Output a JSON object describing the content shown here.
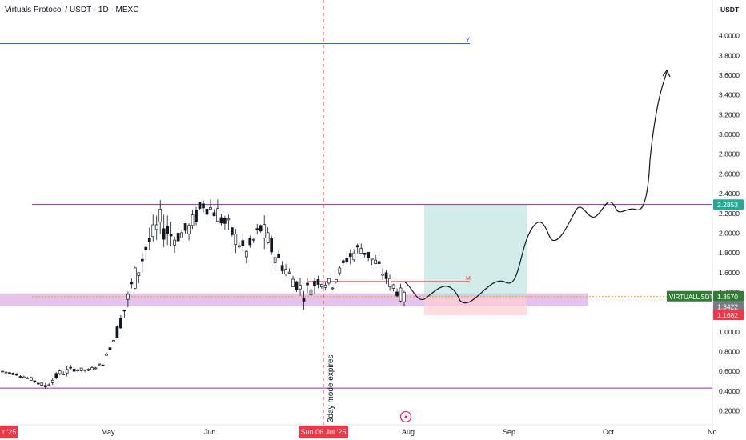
{
  "header": {
    "symbol_title": "Virtuals Protocol / USDT · 1D · MEXC",
    "currency_label": "USDT"
  },
  "chart_data": {
    "type": "candlestick",
    "title": "Virtuals Protocol / USDT · 1D · MEXC",
    "y_axis": {
      "unit": "USDT",
      "ticks": [
        "0.2000",
        "0.4000",
        "0.6000",
        "0.8000",
        "1.0000",
        "1.2000",
        "1.4000",
        "1.6000",
        "1.8000",
        "2.0000",
        "2.2000",
        "2.4000",
        "2.6000",
        "2.8000",
        "3.0000",
        "3.2000",
        "3.4000",
        "3.6000",
        "3.8000",
        "4.0000"
      ],
      "range": [
        0.05,
        4.35
      ]
    },
    "x_axis": {
      "ticks": [
        "r '25",
        "May",
        "Jun",
        "Sun 06 Jul '25",
        "Aug",
        "Sep",
        "Oct",
        "No"
      ],
      "highlighted_tick": "Sun 06 Jul '25",
      "range": [
        "2025-03-28",
        "2025-11-05"
      ]
    },
    "price_labels": [
      {
        "text": "2.2853",
        "value": 2.2853,
        "color": "#22ab94"
      },
      {
        "text": "VIRTUALUSDT",
        "value": 1.357,
        "color": "#2e7d32"
      },
      {
        "text": "1.3570",
        "value": 1.357,
        "color": "#2e7d32"
      },
      {
        "text": "1.3422",
        "value": 1.3422,
        "color": "#787b86"
      },
      {
        "text": "1.1682",
        "value": 1.1682,
        "color": "#f23645"
      }
    ],
    "horizontal_levels": [
      {
        "label": "Y",
        "value": 3.92,
        "color": "#2962ff"
      },
      {
        "value": 2.29,
        "color": "#9c27b0"
      },
      {
        "value": 0.43,
        "color": "#9c27b0"
      },
      {
        "label": "M",
        "value": 1.51,
        "color": "#f23645"
      }
    ],
    "zones": [
      {
        "kind": "support",
        "from": 1.26,
        "to": 1.39,
        "color": "#ce93d8"
      },
      {
        "kind": "target",
        "from": 1.357,
        "to": 2.2853,
        "color": "#b2dfdb"
      },
      {
        "kind": "stop",
        "from": 1.1682,
        "to": 1.357,
        "color": "#ffcdd2"
      }
    ],
    "annotations": [
      {
        "text": "3day mode expires",
        "date": "2025-07-06",
        "color": "#f23645"
      }
    ],
    "projection_path": {
      "description": "hand-drawn forecast ending in arrow",
      "points": [
        [
          1.53,
          1.53
        ],
        [
          1.32,
          1.32
        ],
        [
          1.5,
          1.5
        ],
        [
          1.26,
          1.26
        ],
        [
          1.5,
          1.5
        ],
        [
          1.4,
          1.4
        ],
        [
          2.15,
          2.15
        ],
        [
          1.92,
          1.92
        ],
        [
          2.27,
          2.27
        ],
        [
          2.15,
          2.15
        ],
        [
          2.35,
          2.35
        ],
        [
          2.26,
          2.26
        ],
        [
          3.3,
          3.3
        ],
        [
          3.65,
          3.65
        ]
      ]
    },
    "series": [
      {
        "name": "VIRTUALUSDT",
        "ohlc_sampled": [
          [
            0.62,
            0.64,
            0.58,
            0.6
          ],
          [
            0.6,
            0.61,
            0.55,
            0.57
          ],
          [
            0.57,
            0.58,
            0.5,
            0.52
          ],
          [
            0.52,
            0.55,
            0.4,
            0.45
          ],
          [
            0.45,
            0.6,
            0.44,
            0.58
          ],
          [
            0.58,
            0.65,
            0.56,
            0.62
          ],
          [
            0.62,
            0.66,
            0.59,
            0.61
          ],
          [
            0.61,
            0.7,
            0.6,
            0.68
          ],
          [
            0.68,
            1.05,
            0.66,
            1.0
          ],
          [
            1.0,
            1.55,
            0.98,
            1.45
          ],
          [
            1.45,
            1.9,
            1.38,
            1.85
          ],
          [
            1.85,
            2.25,
            1.6,
            2.1
          ],
          [
            2.1,
            2.2,
            1.85,
            1.95
          ],
          [
            1.95,
            2.15,
            1.75,
            2.05
          ],
          [
            2.05,
            2.4,
            2.0,
            2.3
          ],
          [
            2.3,
            2.58,
            2.1,
            2.2
          ],
          [
            2.2,
            2.3,
            1.9,
            2.0
          ],
          [
            2.0,
            2.1,
            1.7,
            1.8
          ],
          [
            1.8,
            2.3,
            1.75,
            2.05
          ],
          [
            2.05,
            2.1,
            1.7,
            1.78
          ],
          [
            1.78,
            1.85,
            1.5,
            1.58
          ],
          [
            1.58,
            1.7,
            1.3,
            1.4
          ],
          [
            1.4,
            1.6,
            1.35,
            1.52
          ],
          [
            1.52,
            1.6,
            1.38,
            1.48
          ],
          [
            1.48,
            1.85,
            1.45,
            1.75
          ],
          [
            1.75,
            1.95,
            1.65,
            1.85
          ],
          [
            1.85,
            1.9,
            1.6,
            1.7
          ],
          [
            1.7,
            1.75,
            1.45,
            1.5
          ],
          [
            1.5,
            1.55,
            1.3,
            1.34
          ]
        ]
      }
    ],
    "grid": false
  },
  "footer": {
    "lightning_icon": "lightning-icon"
  }
}
